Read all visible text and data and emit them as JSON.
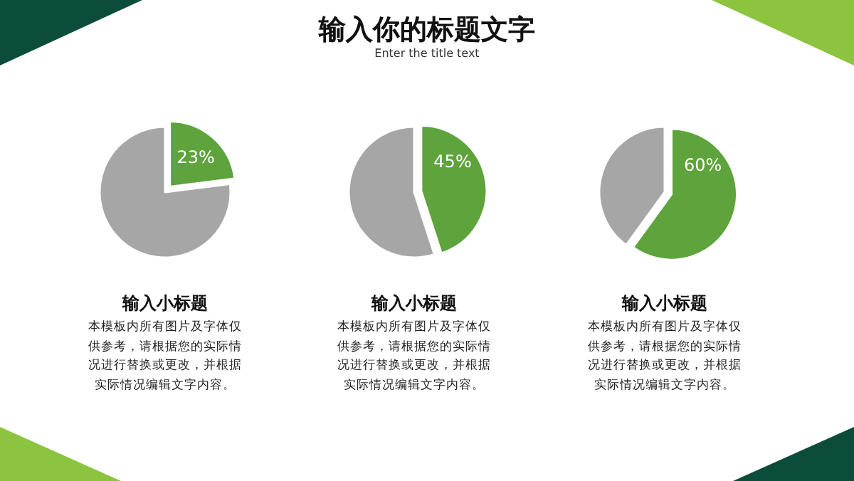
{
  "chart_data": [
    {
      "type": "other",
      "title": "输入你的标题文字",
      "subtitle": "Enter the title text"
    },
    {
      "type": "pie",
      "title": "输入小标题",
      "categories": [
        null,
        null
      ],
      "values": [
        23,
        77
      ],
      "colors": [
        "#5ea33c",
        "#a6a6a6"
      ],
      "value_labels": [
        "23%",
        null
      ],
      "annotations": [
        "本模板内所有图片及字体仅供参考，请根据您的实际情况进行替换或更改，并根据实际情况编辑文字内容。"
      ]
    },
    {
      "type": "pie",
      "title": "输入小标题",
      "categories": [
        null,
        null
      ],
      "values": [
        45,
        55
      ],
      "colors": [
        "#5ea33c",
        "#a6a6a6"
      ],
      "value_labels": [
        "45%",
        null
      ],
      "annotations": [
        "本模板内所有图片及字体仅供参考，请根据您的实际情况进行替换或更改，并根据实际情况编辑文字内容。"
      ]
    },
    {
      "type": "pie",
      "title": "输入小标题",
      "categories": [
        null,
        null
      ],
      "values": [
        60,
        40
      ],
      "colors": [
        "#5ea33c",
        "#a6a6a6"
      ],
      "value_labels": [
        "60%",
        null
      ],
      "annotations": [
        "本模板内所有图片及字体仅供参考，请根据您的实际情况进行替换或更改，并根据实际情况编辑文字内容。"
      ]
    }
  ]
}
